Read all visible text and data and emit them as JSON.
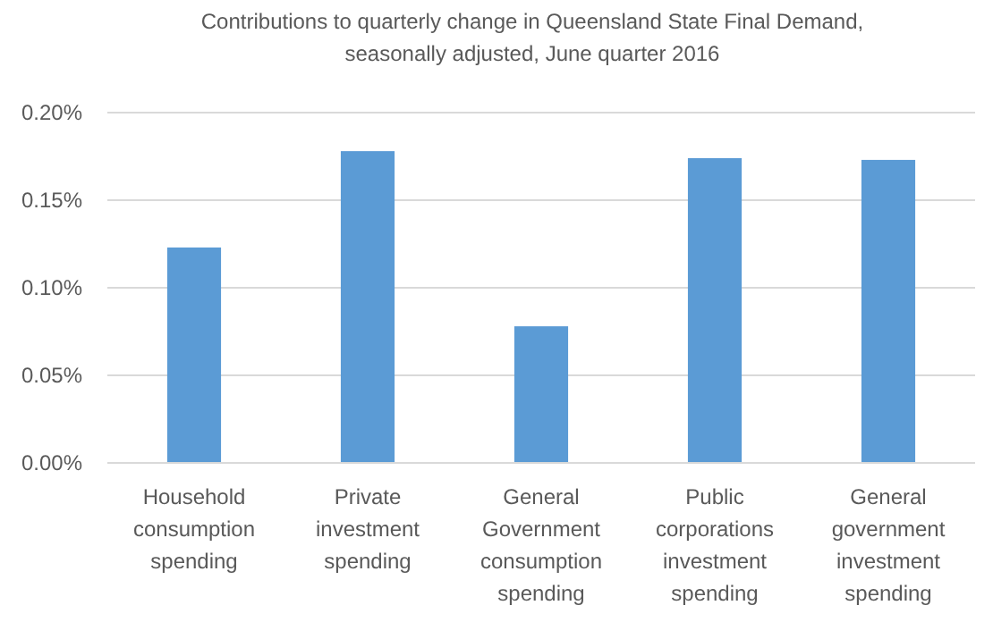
{
  "chart_data": {
    "type": "bar",
    "title": "Contributions to quarterly change in Queensland State Final Demand, seasonally adjusted, June quarter 2016",
    "categories": [
      "Household consumption spending",
      "Private investment spending",
      "General Government consumption spending",
      "Public corporations investment spending",
      "General government investment spending"
    ],
    "values": [
      0.123,
      0.178,
      0.078,
      0.174,
      0.173
    ],
    "color": "#5b9bd5",
    "ylim": [
      0,
      0.2
    ],
    "yticks": [
      {
        "value": 0,
        "label": "0.00%"
      },
      {
        "value": 0.05,
        "label": "0.05%"
      },
      {
        "value": 0.1,
        "label": "0.10%"
      },
      {
        "value": 0.15,
        "label": "0.15%"
      },
      {
        "value": 0.2,
        "label": "0.20%"
      }
    ],
    "grid": true
  }
}
